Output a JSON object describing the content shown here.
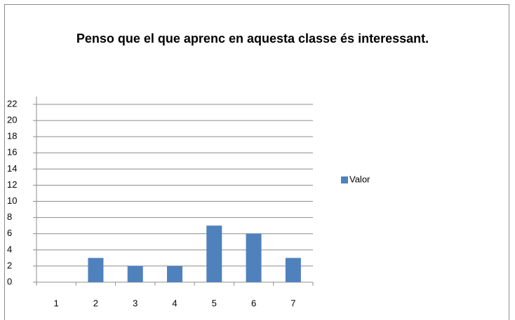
{
  "chart_data": {
    "type": "bar",
    "title": "Penso que el que aprenc en aquesta classe és interessant.",
    "categories": [
      "1",
      "2",
      "3",
      "4",
      "5",
      "6",
      "7"
    ],
    "series": [
      {
        "name": "Valor",
        "color": "#4f81bd",
        "values": [
          0,
          3,
          2,
          2,
          7,
          6,
          3
        ]
      }
    ],
    "ylim": [
      0,
      22
    ],
    "yticks": [
      0,
      2,
      4,
      6,
      8,
      10,
      12,
      14,
      16,
      18,
      20,
      22
    ],
    "grid": true,
    "legend": "right"
  }
}
